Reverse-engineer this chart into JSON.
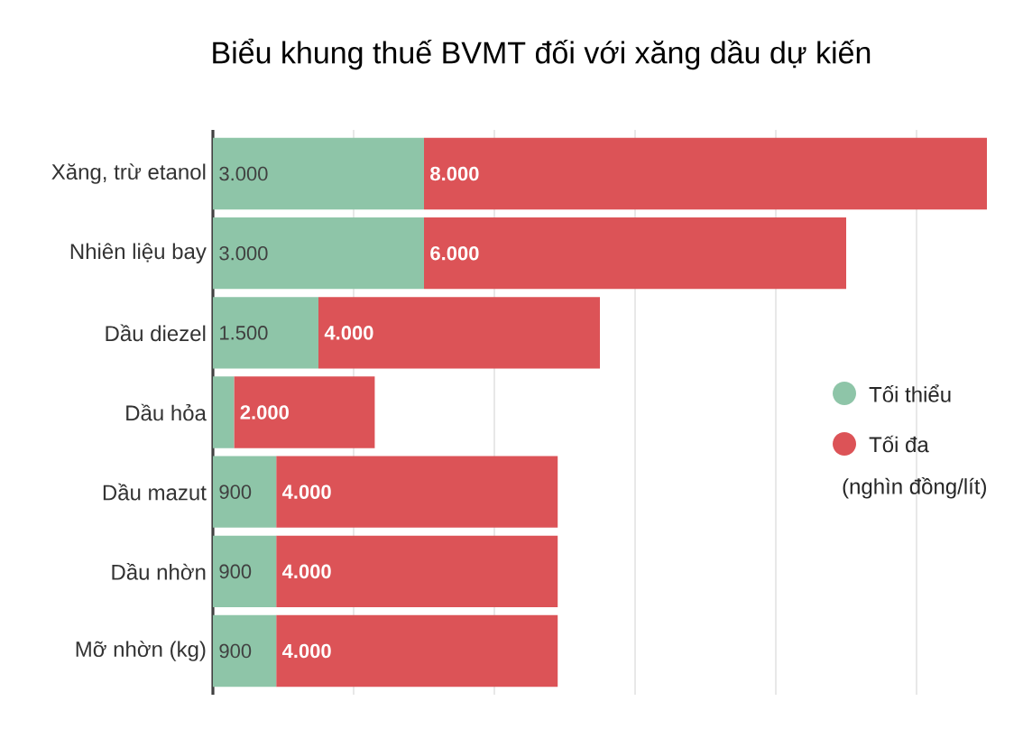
{
  "chart_data": {
    "type": "bar",
    "orientation": "horizontal",
    "stacked": true,
    "title": "Biểu khung thuế BVMT đối với xăng dầu dự kiến",
    "categories": [
      "Xăng, trừ etanol",
      "Nhiên liệu bay",
      "Dầu diezel",
      "Dầu hỏa",
      "Dầu mazut",
      "Dầu nhờn",
      "Mỡ nhờn (kg)"
    ],
    "series": [
      {
        "name": "Tối thiểu",
        "color": "#8ec5a8",
        "values": [
          3000,
          3000,
          1500,
          300,
          900,
          900,
          900
        ],
        "value_labels": [
          "3.000",
          "3.000",
          "1.500",
          null,
          "900",
          "900",
          "900"
        ]
      },
      {
        "name": "Tối đa",
        "color": "#dc5357",
        "values": [
          8000,
          6000,
          4000,
          2000,
          4000,
          4000,
          4000
        ],
        "value_labels": [
          "8.000",
          "6.000",
          "4.000",
          "2.000",
          "4.000",
          "4.000",
          "4.000"
        ]
      }
    ],
    "xticks": [
      {
        "value": 2000,
        "label": null
      },
      {
        "value": 4000,
        "label": null
      },
      {
        "value": 6000,
        "label": null
      },
      {
        "value": 8000,
        "label": null
      },
      {
        "value": 10000,
        "label": null
      }
    ],
    "grid": "x",
    "legend": "right",
    "tick_labels": "y",
    "annotations": [
      "(nghìn đồng/lít)"
    ]
  }
}
